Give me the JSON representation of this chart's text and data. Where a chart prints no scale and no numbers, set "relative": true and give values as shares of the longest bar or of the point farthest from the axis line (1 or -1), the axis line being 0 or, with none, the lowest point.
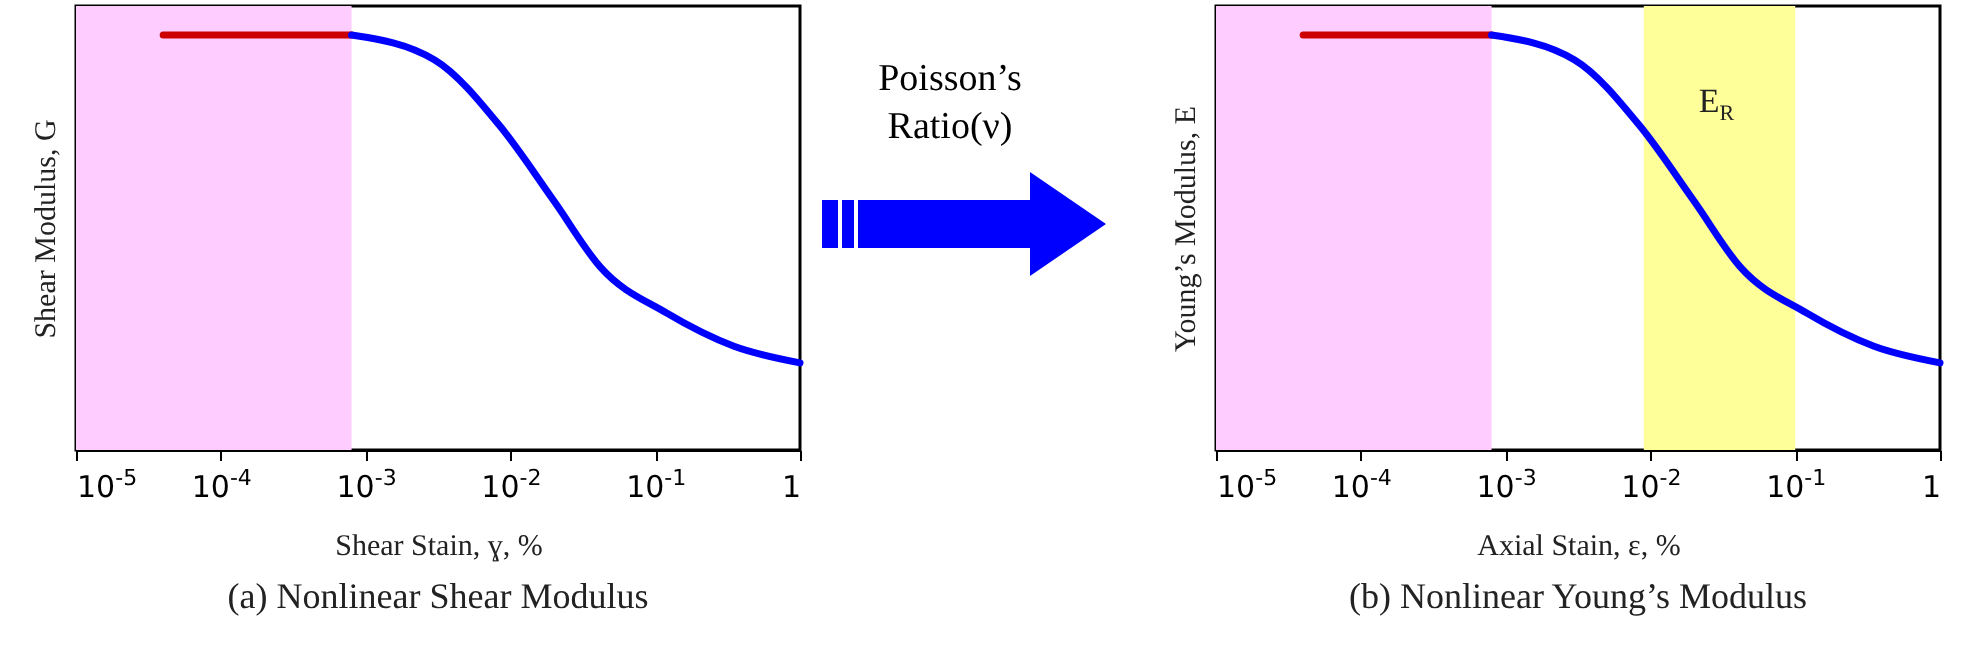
{
  "chart_data": [
    {
      "type": "line",
      "xlabel": "Shear Stain, ɣ, %",
      "ylabel": "Shear Modulus, G",
      "relative": true,
      "log": "x",
      "xlim": [
        1e-05,
        1
      ],
      "xticks": [
        {
          "value": 1e-05,
          "label": "10$^{-5}$"
        },
        {
          "value": 0.0001,
          "label": "10$^{-4}$"
        },
        {
          "value": 0.001,
          "label": "10$^{-3}$"
        },
        {
          "value": 0.01,
          "label": "10$^{-2}$"
        },
        {
          "value": 0.1,
          "label": "10$^{-1}$"
        },
        1
      ],
      "tick_labels": "x",
      "bands": [
        {
          "axis": "x",
          "from": 1e-05,
          "to": 0.0008,
          "color": "#ffccff"
        }
      ],
      "series": [
        {
          "color": "#cc0000",
          "x": [
            4e-05,
            0.0008
          ],
          "values": [
            1,
            1
          ]
        },
        {
          "color": "#0000ff",
          "x": [
            0.0008,
            0.003,
            0.0085,
            0.02,
            0.042,
            0.12,
            0.35,
            1
          ],
          "values": [
            1,
            0.94,
            0.78,
            0.6,
            0.44,
            0.33,
            0.25,
            0.21
          ]
        }
      ],
      "annotations": [
        "(a) Nonlinear Shear Modulus",
        "Poisson’s Ratio(ν)"
      ]
    },
    {
      "type": "line",
      "xlabel": "Axial Stain, ε, %",
      "ylabel": "Young’s Modulus, E",
      "relative": true,
      "log": "x",
      "xlim": [
        1e-05,
        1
      ],
      "xticks": [
        {
          "value": 1e-05,
          "label": "10$^{-5}$"
        },
        {
          "value": 0.0001,
          "label": "10$^{-4}$"
        },
        {
          "value": 0.001,
          "label": "10$^{-3}$"
        },
        {
          "value": 0.01,
          "label": "10$^{-2}$"
        },
        {
          "value": 0.1,
          "label": "10$^{-1}$"
        },
        1
      ],
      "tick_labels": "x",
      "bands": [
        {
          "axis": "x",
          "from": 1e-05,
          "to": 0.0008,
          "color": "#ffccff"
        },
        {
          "axis": "x",
          "from": 0.009,
          "to": 0.1,
          "color": "#ffff99",
          "label": "E$_{R}$"
        }
      ],
      "series": [
        {
          "color": "#cc0000",
          "x": [
            4e-05,
            0.0008
          ],
          "values": [
            1,
            1
          ]
        },
        {
          "color": "#0000ff",
          "x": [
            0.0008,
            0.003,
            0.0085,
            0.02,
            0.042,
            0.12,
            0.35,
            1
          ],
          "values": [
            1,
            0.94,
            0.78,
            0.6,
            0.44,
            0.33,
            0.25,
            0.21
          ]
        }
      ],
      "annotations": [
        "(b) Nonlinear Young’s Modulus"
      ]
    }
  ]
}
